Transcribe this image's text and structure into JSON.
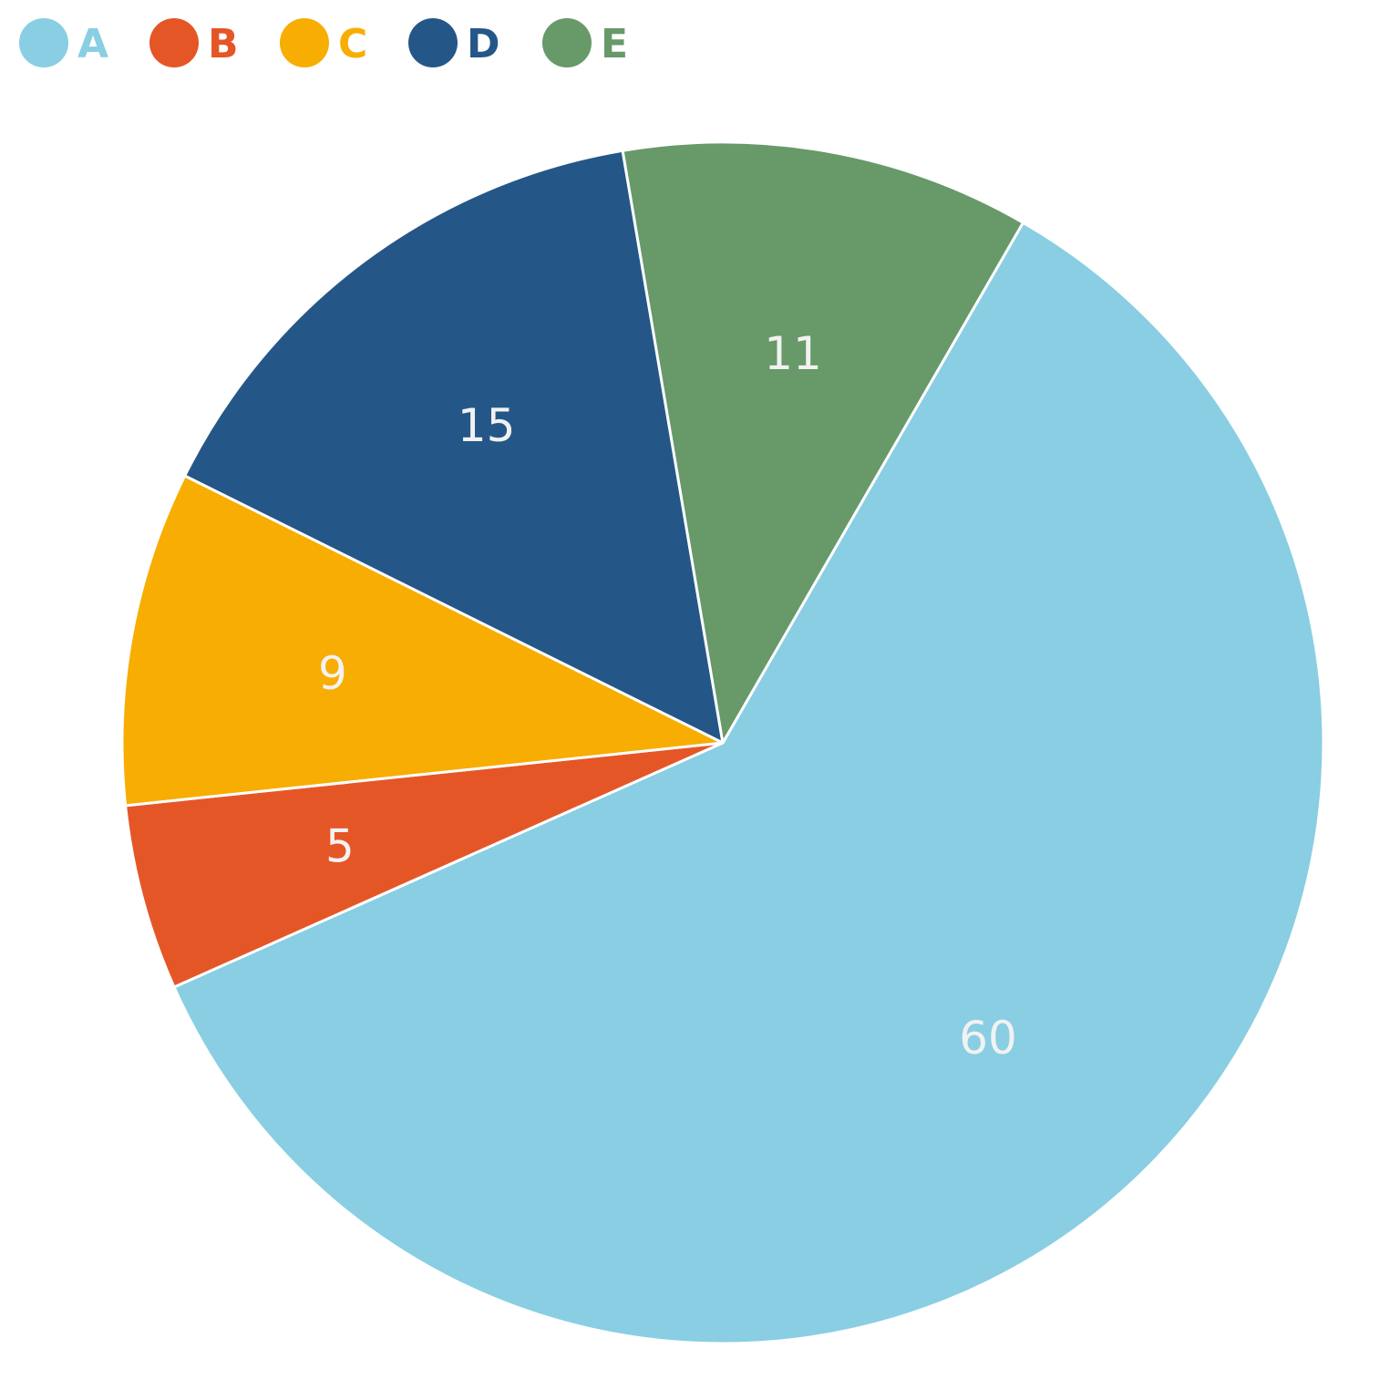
{
  "chart_data": {
    "type": "pie",
    "categories": [
      "A",
      "B",
      "C",
      "D",
      "E"
    ],
    "values": [
      60,
      5,
      9,
      15,
      11
    ],
    "colors": [
      "#89CEE3",
      "#E55627",
      "#F7AD02",
      "#245787",
      "#679969"
    ],
    "legend_position": "top-left",
    "start_angle_deg": 30,
    "direction": "clockwise",
    "data_labels": true
  }
}
